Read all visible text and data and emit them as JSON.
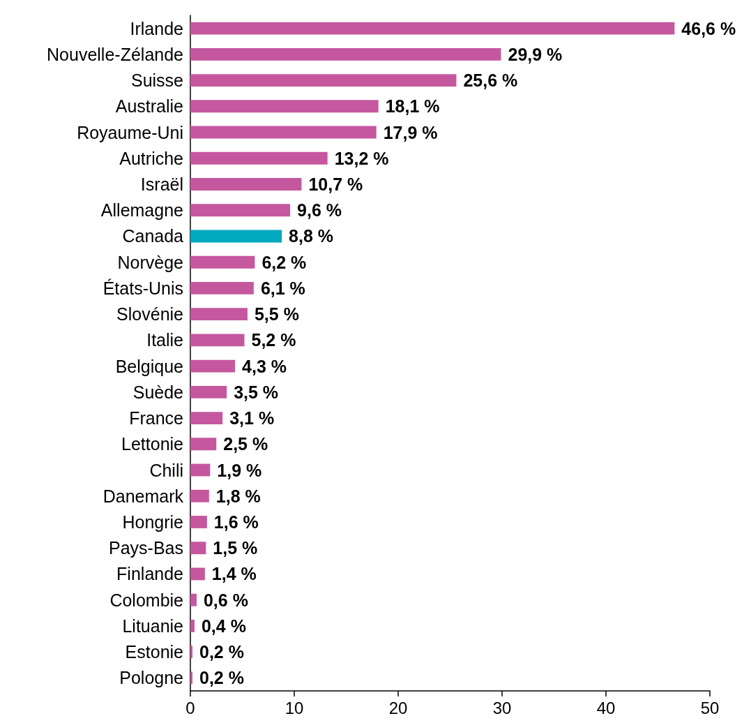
{
  "chart_data": {
    "type": "bar",
    "orientation": "horizontal",
    "categories": [
      "Irlande",
      "Nouvelle-Zélande",
      "Suisse",
      "Australie",
      "Royaume-Uni",
      "Autriche",
      "Israël",
      "Allemagne",
      "Canada",
      "Norvège",
      "États-Unis",
      "Slovénie",
      "Italie",
      "Belgique",
      "Suède",
      "France",
      "Lettonie",
      "Chili",
      "Danemark",
      "Hongrie",
      "Pays-Bas",
      "Finlande",
      "Colombie",
      "Lituanie",
      "Estonie",
      "Pologne"
    ],
    "values": [
      46.6,
      29.9,
      25.6,
      18.1,
      17.9,
      13.2,
      10.7,
      9.6,
      8.8,
      6.2,
      6.1,
      5.5,
      5.2,
      4.3,
      3.5,
      3.1,
      2.5,
      1.9,
      1.8,
      1.6,
      1.5,
      1.4,
      0.6,
      0.4,
      0.2,
      0.2
    ],
    "value_labels": [
      "46,6 %",
      "29,9 %",
      "25,6 %",
      "18,1 %",
      "17,9 %",
      "13,2 %",
      "10,7 %",
      "9,6 %",
      "8,8 %",
      "6,2 %",
      "6,1 %",
      "5,5 %",
      "5,2 %",
      "4,3 %",
      "3,5 %",
      "3,1 %",
      "2,5 %",
      "1,9 %",
      "1,8 %",
      "1,6 %",
      "1,5 %",
      "1,4 %",
      "0,6 %",
      "0,4 %",
      "0,2 %",
      "0,2 %"
    ],
    "colors": [
      "#c5579f",
      "#c5579f",
      "#c5579f",
      "#c5579f",
      "#c5579f",
      "#c5579f",
      "#c5579f",
      "#c5579f",
      "#00a9bc",
      "#c5579f",
      "#c5579f",
      "#c5579f",
      "#c5579f",
      "#c5579f",
      "#c5579f",
      "#c5579f",
      "#c5579f",
      "#c5579f",
      "#c5579f",
      "#c5579f",
      "#c5579f",
      "#c5579f",
      "#c5579f",
      "#c5579f",
      "#c5579f",
      "#c5579f"
    ],
    "xlim": [
      0,
      50
    ],
    "xticks": [
      0,
      10,
      20,
      30,
      40,
      50
    ],
    "grid": false
  }
}
